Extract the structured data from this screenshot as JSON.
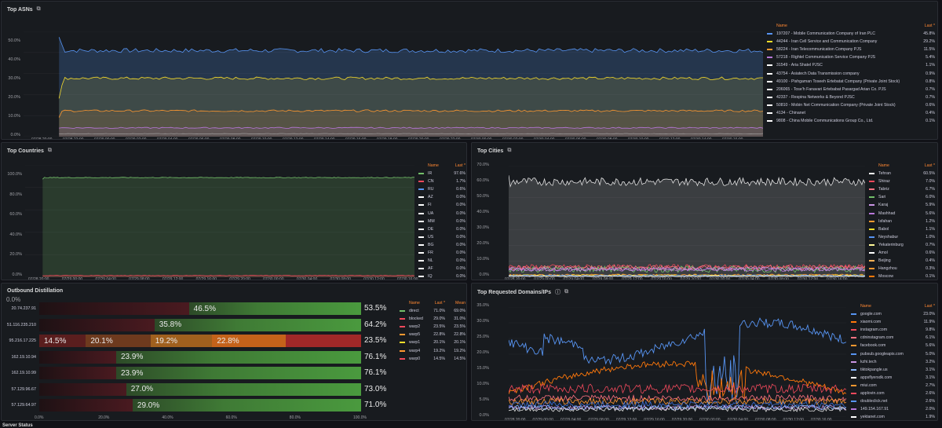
{
  "asn_panel": {
    "title": "Top ASNs",
    "yticks": [
      "50.0%",
      "40.0%",
      "30.0%",
      "20.0%",
      "10.0%",
      "0.0%"
    ],
    "xticks": [
      "07/28 20:00",
      "07/28 22:00",
      "07/29 00:00",
      "07/29 02:00",
      "07/29 04:00",
      "07/29 06:00",
      "07/29 08:00",
      "07/29 10:00",
      "07/29 12:00",
      "07/29 14:00",
      "07/29 16:00",
      "07/29 18:00",
      "07/29 20:00",
      "07/29 22:00",
      "07/30 00:00",
      "07/30 02:00",
      "07/30 04:00",
      "07/30 06:00",
      "07/30 08:00",
      "07/30 10:00",
      "07/30 12:00",
      "07/30 14:00",
      "07/30 16:00"
    ],
    "legend_name_header": "Name",
    "legend_last_header": "Last *",
    "legend": [
      {
        "name": "197207 - Mobile Communication Company of Iran PLC",
        "last": "45.8%",
        "color": "#5794f2"
      },
      {
        "name": "44244 - Iran Cell Service and Communication Company",
        "last": "29.2%",
        "color": "#fade2a"
      },
      {
        "name": "58224 - Iran Telecommunication Company PJS",
        "last": "11.5%",
        "color": "#ff9830"
      },
      {
        "name": "57218 - Rightel Communication Service Company PJS",
        "last": "5.4%",
        "color": "#b877d9"
      },
      {
        "name": "31549 - Aria Shatel PJSC",
        "last": "1.1%",
        "color": "#ffffff"
      },
      {
        "name": "43754 - Asiatech Data Transmission company",
        "last": "0.9%",
        "color": "#ffffff"
      },
      {
        "name": "49100 - Pishgaman Toseeh Ertebatat Company (Private Joint Stock)",
        "last": "0.8%",
        "color": "#ffffff"
      },
      {
        "name": "206065 - Tose'h Fanavari Ertebabat Pasargad Arian Co. PJS",
        "last": "0.7%",
        "color": "#ffffff"
      },
      {
        "name": "42337 - Respina Networks & Beyond PJSC",
        "last": "0.7%",
        "color": "#ffffff"
      },
      {
        "name": "50810 - Mobin Net Communication Company (Private Joint Stock)",
        "last": "0.6%",
        "color": "#ffffff"
      },
      {
        "name": "4134 - Chinanet",
        "last": "0.4%",
        "color": "#ffffff"
      },
      {
        "name": "9808 - China Mobile Communications Group Co., Ltd.",
        "last": "0.1%",
        "color": "#ffffff"
      }
    ]
  },
  "countries_panel": {
    "title": "Top Countries",
    "yticks": [
      "100.0%",
      "80.0%",
      "60.0%",
      "40.0%",
      "20.0%",
      "0.0%"
    ],
    "xticks": [
      "07/28 20:00",
      "07/29 00:00",
      "07/29 04:00",
      "07/29 08:00",
      "07/29 12:00",
      "07/29 16:00",
      "07/29 20:00",
      "07/30 00:00",
      "07/30 04:00",
      "07/30 08:00",
      "07/30 12:00",
      "07/30 16:00"
    ],
    "legend_name_header": "Name",
    "legend_last_header": "Last *",
    "legend": [
      {
        "name": "IR",
        "last": "97.6%",
        "color": "#73bf69"
      },
      {
        "name": "CN",
        "last": "1.7%",
        "color": "#f2495c"
      },
      {
        "name": "RU",
        "last": "0.6%",
        "color": "#5794f2"
      },
      {
        "name": "AZ",
        "last": "0.0%",
        "color": "#ffffff"
      },
      {
        "name": "FI",
        "last": "0.0%",
        "color": "#ffffff"
      },
      {
        "name": "UA",
        "last": "0.0%",
        "color": "#ffffff"
      },
      {
        "name": "MM",
        "last": "0.0%",
        "color": "#ffffff"
      },
      {
        "name": "DE",
        "last": "0.0%",
        "color": "#ffffff"
      },
      {
        "name": "US",
        "last": "0.0%",
        "color": "#ffffff"
      },
      {
        "name": "BG",
        "last": "0.0%",
        "color": "#ffffff"
      },
      {
        "name": "FR",
        "last": "0.0%",
        "color": "#ffffff"
      },
      {
        "name": "NL",
        "last": "0.0%",
        "color": "#ffffff"
      },
      {
        "name": "AF",
        "last": "0.0%",
        "color": "#ffffff"
      },
      {
        "name": "IQ",
        "last": "0.0%",
        "color": "#ffffff"
      }
    ]
  },
  "cities_panel": {
    "title": "Top Cities",
    "yticks": [
      "70.0%",
      "60.0%",
      "50.0%",
      "40.0%",
      "30.0%",
      "20.0%",
      "10.0%",
      "0.0%"
    ],
    "xticks": [
      "07/28 20:00",
      "07/29 00:00",
      "07/29 04:00",
      "07/29 08:00",
      "07/29 12:00",
      "07/29 16:00",
      "07/29 20:00",
      "07/30 00:00",
      "07/30 04:00",
      "07/30 08:00",
      "07/30 12:00",
      "07/30 16:00"
    ],
    "legend_name_header": "Name",
    "legend_last_header": "Last *",
    "legend": [
      {
        "name": "Tehran",
        "last": "60.5%",
        "color": "#ffffff"
      },
      {
        "name": "Shiraz",
        "last": "7.0%",
        "color": "#f2495c"
      },
      {
        "name": "Tabriz",
        "last": "6.7%",
        "color": "#ff7383"
      },
      {
        "name": "Sari",
        "last": "6.0%",
        "color": "#73bf69"
      },
      {
        "name": "Karaj",
        "last": "5.9%",
        "color": "#ca95e5"
      },
      {
        "name": "Mashhad",
        "last": "5.6%",
        "color": "#b877d9"
      },
      {
        "name": "Isfahan",
        "last": "1.2%",
        "color": "#ff9830"
      },
      {
        "name": "Babol",
        "last": "1.1%",
        "color": "#fade2a"
      },
      {
        "name": "Neyshabur",
        "last": "1.0%",
        "color": "#5794f2"
      },
      {
        "name": "Yekaterinburg",
        "last": "0.7%",
        "color": "#fff899"
      },
      {
        "name": "Amol",
        "last": "0.6%",
        "color": "#ffffff"
      },
      {
        "name": "Beijing",
        "last": "0.4%",
        "color": "#ffb357"
      },
      {
        "name": "Hangzhou",
        "last": "0.3%",
        "color": "#ff9830"
      },
      {
        "name": "Moscow",
        "last": "0.1%",
        "color": "#ff780a"
      }
    ]
  },
  "outbound_panel": {
    "title": "Outbound Distillation",
    "top_clipped_tick": "0.0%",
    "xticks": [
      "0.0%",
      "20.0%",
      "40.0%",
      "60.0%",
      "80.0%",
      "100.0%"
    ],
    "rows": [
      {
        "label": "20.74.237.91",
        "total": "53.5%",
        "segments": [
          {
            "w": 46.5,
            "text": "",
            "color": "#3a1418"
          },
          {
            "w": 53.5,
            "text": "46.5%",
            "color": "#37872d"
          }
        ]
      },
      {
        "label": "51.116.235.210",
        "total": "64.2%",
        "segments": [
          {
            "w": 35.8,
            "text": "",
            "color": "#3a1418"
          },
          {
            "w": 64.2,
            "text": "35.8%",
            "color": "#37872d"
          }
        ]
      },
      {
        "label": "95.216.17.225",
        "total": "23.5%",
        "segments": [
          {
            "w": 14.5,
            "text": "14.5%",
            "color": "#5a1e1e"
          },
          {
            "w": 20.1,
            "text": "20.1%",
            "color": "#6e3a1e"
          },
          {
            "w": 19.2,
            "text": "19.2%",
            "color": "#a0601e"
          },
          {
            "w": 22.8,
            "text": "22.8%",
            "color": "#c4621a"
          },
          {
            "w": 23.5,
            "text": "",
            "color": "#a02828"
          }
        ]
      },
      {
        "label": "162.19.10.94",
        "total": "76.1%",
        "segments": [
          {
            "w": 23.9,
            "text": "",
            "color": "#3a1418"
          },
          {
            "w": 76.1,
            "text": "23.9%",
            "color": "#37872d"
          }
        ]
      },
      {
        "label": "162.19.10.99",
        "total": "76.1%",
        "segments": [
          {
            "w": 23.9,
            "text": "",
            "color": "#3a1418"
          },
          {
            "w": 76.1,
            "text": "23.9%",
            "color": "#37872d"
          }
        ]
      },
      {
        "label": "57.129.96.67",
        "total": "73.0%",
        "segments": [
          {
            "w": 27.0,
            "text": "",
            "color": "#3a1418"
          },
          {
            "w": 73.0,
            "text": "27.0%",
            "color": "#37872d"
          }
        ]
      },
      {
        "label": "57.129.64.97",
        "total": "71.0%",
        "segments": [
          {
            "w": 29.0,
            "text": "",
            "color": "#3a1418"
          },
          {
            "w": 71.0,
            "text": "29.0%",
            "color": "#37872d"
          }
        ]
      }
    ],
    "legend_name_header": "Name",
    "legend_last_header": "Last *",
    "legend_mean_header": "Mean",
    "legend": [
      {
        "name": "direct",
        "last": "71.0%",
        "mean": "69.0%",
        "color": "#73bf69"
      },
      {
        "name": "blocked",
        "last": "29.0%",
        "mean": "31.0%",
        "color": "#f2495c"
      },
      {
        "name": "warp2",
        "last": "23.5%",
        "mean": "23.5%",
        "color": "#f2495c"
      },
      {
        "name": "warp5",
        "last": "22.8%",
        "mean": "22.8%",
        "color": "#ff9830"
      },
      {
        "name": "warp1",
        "last": "20.1%",
        "mean": "20.1%",
        "color": "#fade2a"
      },
      {
        "name": "warp4",
        "last": "19.2%",
        "mean": "19.2%",
        "color": "#ff9830"
      },
      {
        "name": "warp0",
        "last": "14.5%",
        "mean": "14.5%",
        "color": "#f2495c"
      }
    ]
  },
  "domains_panel": {
    "title": "Top Requested Domains/IPs",
    "yticks": [
      "35.0%",
      "30.0%",
      "25.0%",
      "20.0%",
      "15.0%",
      "10.0%",
      "5.0%",
      "0.0%"
    ],
    "xticks": [
      "07/28 20:00",
      "07/29 00:00",
      "07/29 04:00",
      "07/29 08:00",
      "07/29 12:00",
      "07/29 16:00",
      "07/29 20:00",
      "07/30 00:00",
      "07/30 04:00",
      "07/30 08:00",
      "07/30 12:00",
      "07/30 16:00"
    ],
    "legend_name_header": "Name",
    "legend_last_header": "Last *",
    "legend": [
      {
        "name": "google.com",
        "last": "23.0%",
        "color": "#5794f2"
      },
      {
        "name": "xiaomi.com",
        "last": "11.9%",
        "color": "#ff780a"
      },
      {
        "name": "instagram.com",
        "last": "9.8%",
        "color": "#f2495c"
      },
      {
        "name": "cdninstagram.com",
        "last": "6.1%",
        "color": "#ff7383"
      },
      {
        "name": "facebook.com",
        "last": "5.6%",
        "color": "#ff9830"
      },
      {
        "name": "pubsub.googleapis.com",
        "last": "5.0%",
        "color": "#5794f2"
      },
      {
        "name": "kzhi.tech",
        "last": "3.2%",
        "color": "#ca95e5"
      },
      {
        "name": "tiktokpangle.us",
        "last": "3.1%",
        "color": "#8ab8ff"
      },
      {
        "name": "appsflyersdk.com",
        "last": "3.1%",
        "color": "#ffffff"
      },
      {
        "name": "miui.com",
        "last": "2.7%",
        "color": "#ff9830"
      },
      {
        "name": "applovin.com",
        "last": "2.6%",
        "color": "#f2495c"
      },
      {
        "name": "doubleclick.net",
        "last": "2.6%",
        "color": "#5794f2"
      },
      {
        "name": "149.154.167.91",
        "last": "2.0%",
        "color": "#b877d9"
      },
      {
        "name": "yektanet.com",
        "last": "1.9%",
        "color": "#ffffff"
      }
    ]
  },
  "bottom_panel_title": "Server Status",
  "panel_icon": "table-icon",
  "info_icon": "info-icon"
}
